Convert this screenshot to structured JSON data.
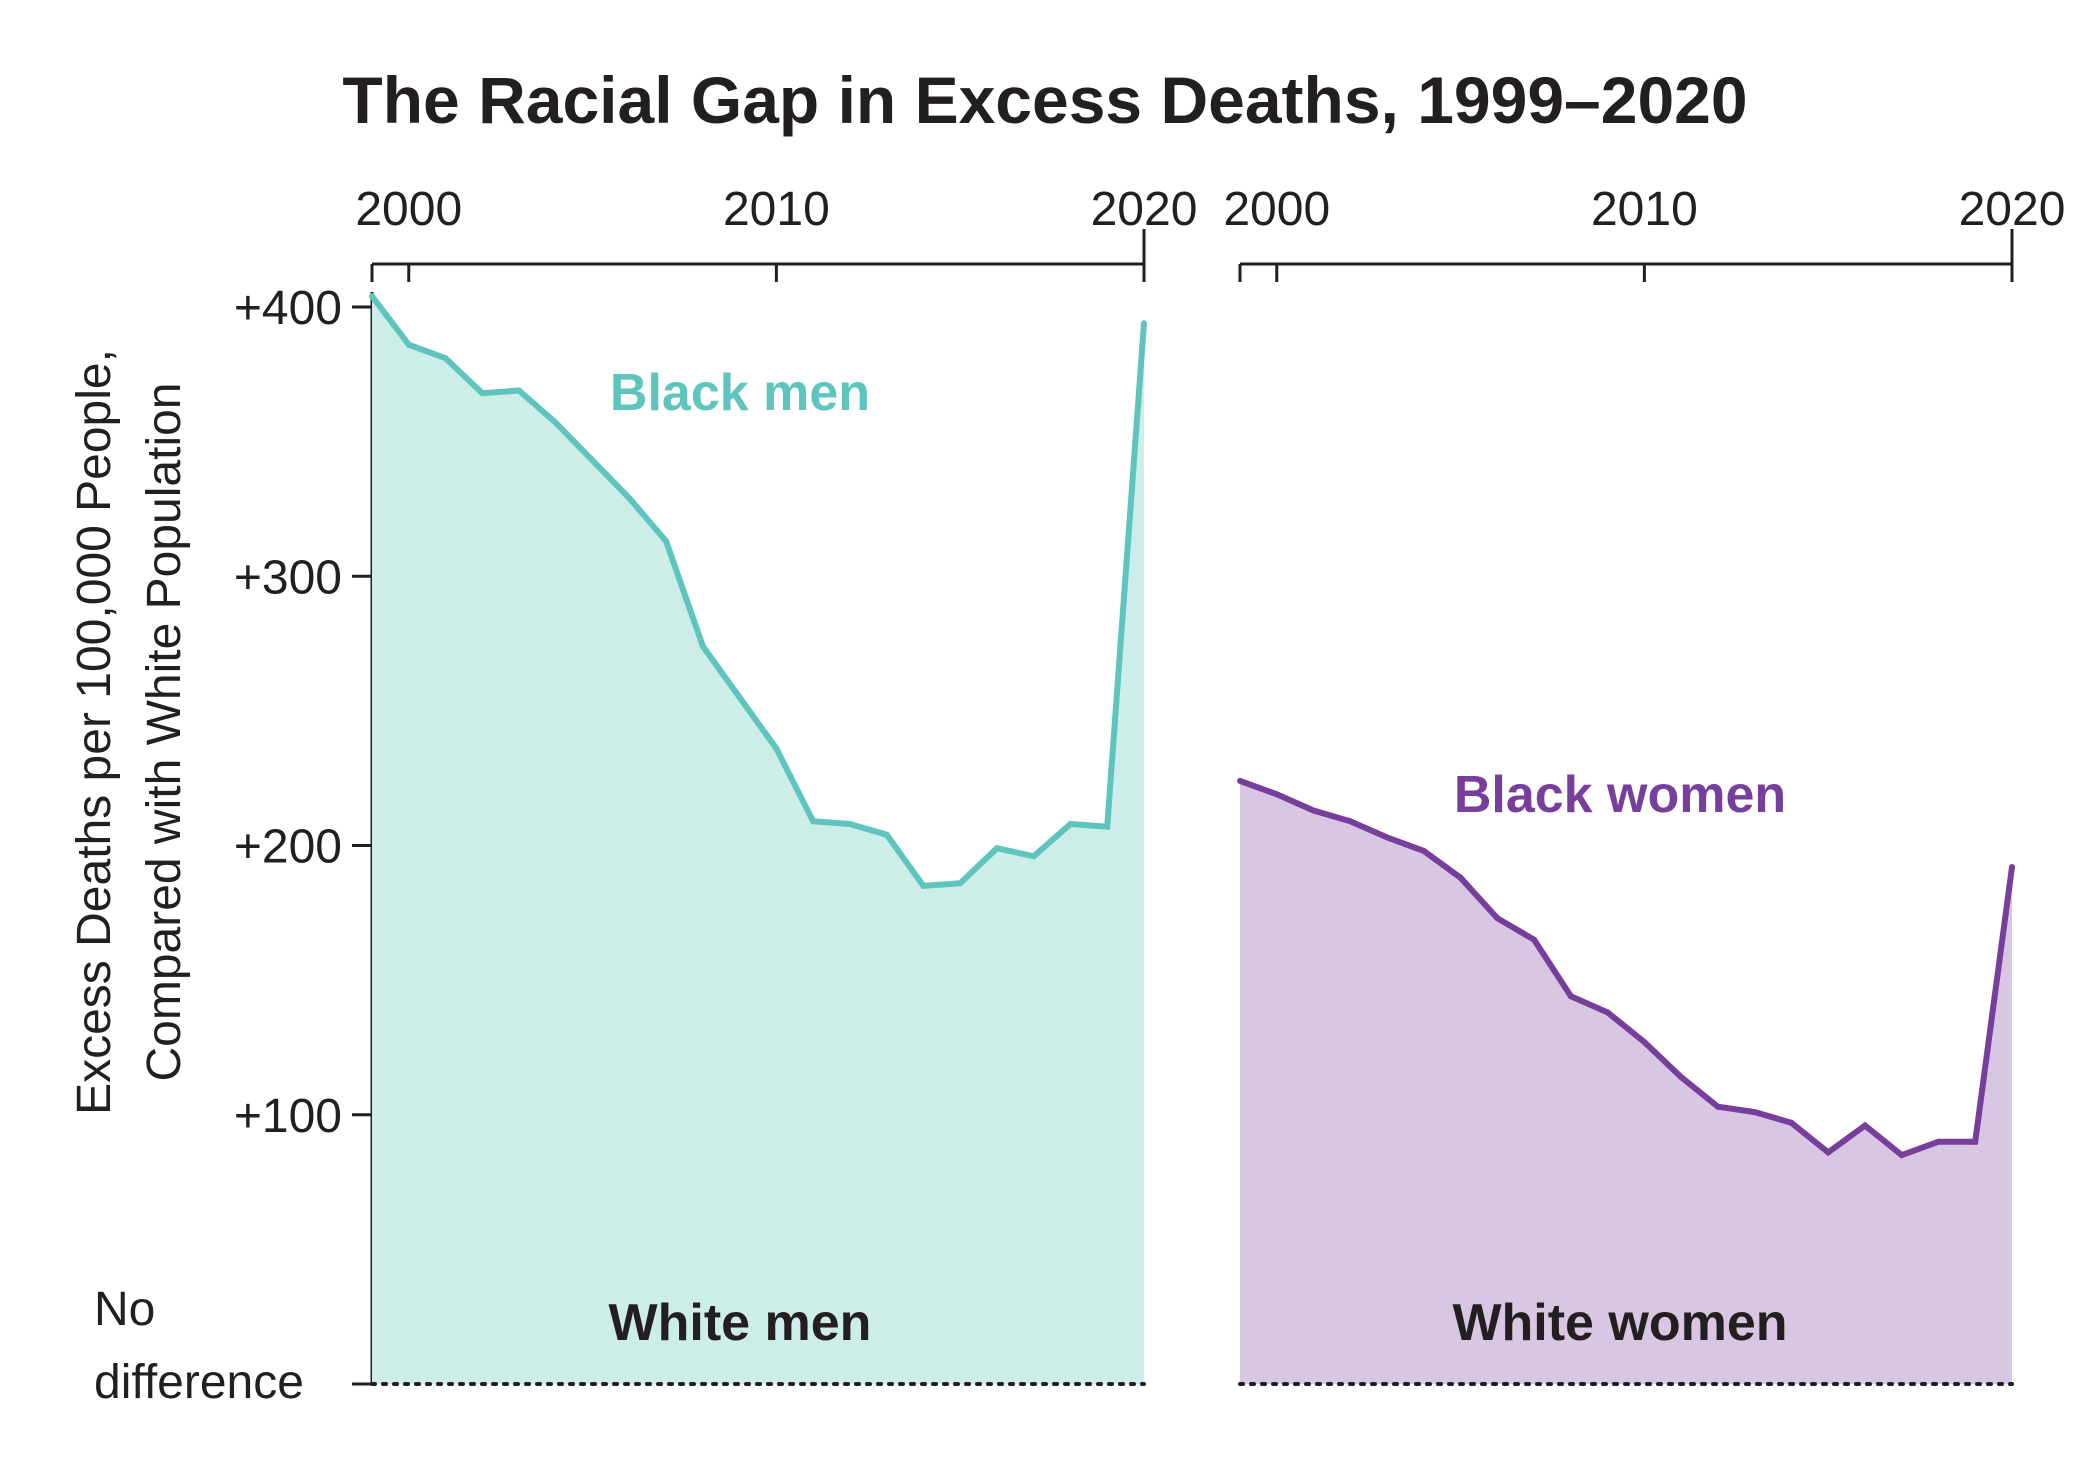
{
  "title": "The Racial Gap in Excess Deaths, 1999–2020",
  "chart_data": {
    "type": "area",
    "title": "The Racial Gap in Excess Deaths, 1999–2020",
    "ylabel_line1": "Excess Deaths per 100,000 People,",
    "ylabel_line2": "Compared with White Population",
    "y_ticks": [
      {
        "value": 400,
        "label": "+400"
      },
      {
        "value": 300,
        "label": "+300"
      },
      {
        "value": 200,
        "label": "+200"
      },
      {
        "value": 100,
        "label": "+100"
      }
    ],
    "zero_label_line1": "No",
    "zero_label_line2": "difference",
    "ylim": [
      0,
      420
    ],
    "xlim": [
      1999,
      2020
    ],
    "x_ticks": [
      {
        "value": 2000,
        "label": "2000"
      },
      {
        "value": 2010,
        "label": "2010"
      },
      {
        "value": 2020,
        "label": "2020"
      }
    ],
    "x_axis_position": "top",
    "grid": false,
    "panels": [
      {
        "series_label": "Black men",
        "baseline_label": "White men",
        "color": "#5ec5be",
        "fill": "#cdede9",
        "x": [
          1999,
          2000,
          2001,
          2002,
          2003,
          2004,
          2005,
          2006,
          2007,
          2008,
          2009,
          2010,
          2011,
          2012,
          2013,
          2014,
          2015,
          2016,
          2017,
          2018,
          2019,
          2020
        ],
        "values": [
          404,
          386,
          381,
          368,
          369,
          357,
          343,
          329,
          313,
          274,
          255,
          236,
          209,
          208,
          204,
          185,
          186,
          199,
          196,
          208,
          207,
          394
        ]
      },
      {
        "series_label": "Black women",
        "baseline_label": "White women",
        "color": "#773f9b",
        "fill": "#d8c7e2",
        "x": [
          1999,
          2000,
          2001,
          2002,
          2003,
          2004,
          2005,
          2006,
          2007,
          2008,
          2009,
          2010,
          2011,
          2012,
          2013,
          2014,
          2015,
          2016,
          2017,
          2018,
          2019,
          2020
        ],
        "values": [
          224,
          219,
          213,
          209,
          203,
          198,
          188,
          173,
          165,
          144,
          138,
          127,
          114,
          103,
          101,
          97,
          86,
          96,
          85,
          90,
          90,
          192
        ]
      }
    ]
  }
}
